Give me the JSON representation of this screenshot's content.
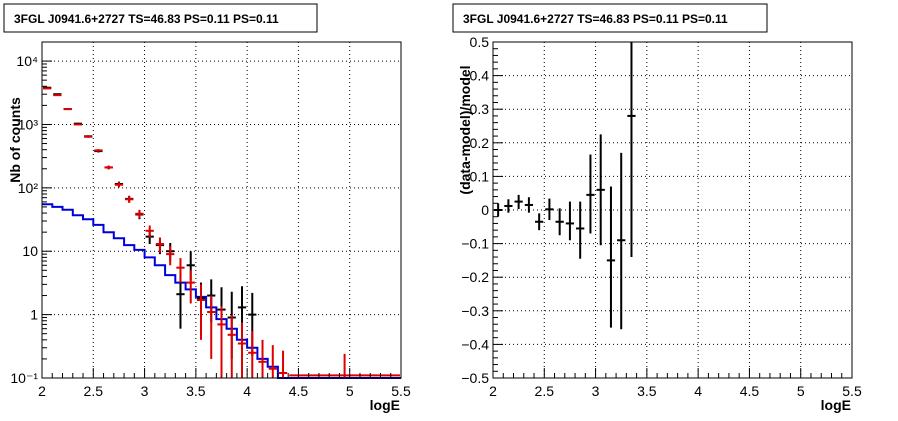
{
  "chart_data": [
    {
      "type": "scatter",
      "title": "3FGL J0941.6+2727 TS=46.83 PS=0.11 PS=0.11",
      "xlabel": "logE",
      "ylabel": "Nb of counts",
      "xlim": [
        2,
        5.5
      ],
      "ylim": [
        0.1,
        20000
      ],
      "yscale": "log",
      "grid": true,
      "x_ticks": [
        "2",
        "2.5",
        "3",
        "3.5",
        "4",
        "4.5",
        "5",
        "5.5"
      ],
      "y_tick_labels": [
        {
          "v": 0.1,
          "label": "10⁻¹"
        },
        {
          "v": 1,
          "label": "1"
        },
        {
          "v": 10,
          "label": "10"
        },
        {
          "v": 100,
          "label": "10²"
        },
        {
          "v": 1000,
          "label": "10³"
        },
        {
          "v": 10000,
          "label": "10⁴"
        }
      ],
      "bins": [
        2.0,
        2.1,
        2.2,
        2.3,
        2.4,
        2.5,
        2.6,
        2.7,
        2.8,
        2.9,
        3.0,
        3.1,
        3.2,
        3.3,
        3.4,
        3.5,
        3.6,
        3.7,
        3.8,
        3.9,
        4.0,
        4.1,
        4.2,
        4.3,
        4.4,
        5.5
      ],
      "series": [
        {
          "role": "data",
          "color": "#000000",
          "y": [
            3800,
            3000,
            1750,
            1030,
            650,
            380,
            210,
            115,
            67,
            38,
            17,
            12.5,
            10,
            2.1,
            6,
            1.8,
            2.0,
            1.2,
            0.9,
            1.3,
            1.0
          ],
          "lo": [
            3740,
            2945,
            1708,
            998,
            625,
            361,
            196,
            104.5,
            59,
            32,
            13,
            9,
            7,
            0.6,
            3.5,
            0.55,
            0.75,
            0.25,
            0.2,
            0.45,
            0.22
          ],
          "hi": [
            3860,
            3055,
            1792,
            1062,
            675,
            399,
            224,
            125.5,
            75,
            44,
            21.5,
            16,
            13.5,
            4.5,
            10,
            3.2,
            3.6,
            2.7,
            2.3,
            2.8,
            2.2
          ]
        },
        {
          "role": "model-total",
          "color": "#dd0000",
          "y": [
            3700,
            2900,
            1750,
            1000,
            640,
            390,
            210,
            112,
            66,
            39,
            21,
            13,
            9,
            5.5,
            3.2,
            1.7,
            1.1,
            0.7,
            0.48,
            0.35,
            0.25,
            0.18,
            0.14,
            0.12,
            0.11
          ],
          "lo": [
            3640,
            2845,
            1708,
            968,
            615,
            371,
            196,
            101.5,
            58,
            33,
            16.5,
            9.5,
            6,
            3.2,
            1.5,
            0.4,
            0.2,
            0.1,
            0.1,
            0.1,
            0.1,
            0.1,
            0.1,
            0.1,
            0.1
          ],
          "hi": [
            3760,
            2955,
            1792,
            1032,
            665,
            409,
            224,
            122.5,
            74,
            45,
            25.5,
            16.5,
            12,
            7.8,
            5.0,
            3.0,
            2.0,
            1.35,
            0.98,
            0.75,
            0.55,
            0.4,
            0.33,
            0.27,
            0.24
          ]
        },
        {
          "role": "model-component",
          "color": "#0000dd",
          "y": [
            55,
            50,
            45,
            37,
            32,
            26,
            20,
            16,
            12.5,
            10.5,
            8,
            6,
            4.2,
            3.2,
            2.5,
            1.9,
            1.3,
            0.85,
            0.6,
            0.4,
            0.3,
            0.2,
            0.15,
            0.1,
            0.1
          ]
        }
      ]
    },
    {
      "type": "scatter",
      "title": "3FGL J0941.6+2727 TS=46.83 PS=0.11 PS=0.11",
      "xlabel": "logE",
      "ylabel": "(data-model)/model",
      "xlim": [
        2,
        5.5
      ],
      "ylim": [
        -0.5,
        0.5
      ],
      "grid": true,
      "x_ticks": [
        "2",
        "2.5",
        "3",
        "3.5",
        "4",
        "4.5",
        "5",
        "5.5"
      ],
      "y_ticks": [
        "−0.5",
        "−0.4",
        "−0.3",
        "−0.2",
        "−0.1",
        "0",
        "0.1",
        "0.2",
        "0.3",
        "0.4",
        "0.5"
      ],
      "points": [
        {
          "x": 2.05,
          "y": 0.0,
          "lo": -0.02,
          "hi": 0.02
        },
        {
          "x": 2.15,
          "y": 0.012,
          "lo": -0.008,
          "hi": 0.032
        },
        {
          "x": 2.25,
          "y": 0.025,
          "lo": 0.003,
          "hi": 0.045
        },
        {
          "x": 2.35,
          "y": 0.015,
          "lo": -0.008,
          "hi": 0.038
        },
        {
          "x": 2.45,
          "y": -0.035,
          "lo": -0.06,
          "hi": -0.01
        },
        {
          "x": 2.55,
          "y": 0.002,
          "lo": -0.03,
          "hi": 0.034
        },
        {
          "x": 2.65,
          "y": -0.035,
          "lo": -0.075,
          "hi": 0.005
        },
        {
          "x": 2.75,
          "y": -0.04,
          "lo": -0.09,
          "hi": 0.025
        },
        {
          "x": 2.85,
          "y": -0.055,
          "lo": -0.145,
          "hi": 0.025
        },
        {
          "x": 2.95,
          "y": 0.045,
          "lo": -0.07,
          "hi": 0.165
        },
        {
          "x": 3.05,
          "y": 0.06,
          "lo": -0.105,
          "hi": 0.225
        },
        {
          "x": 3.15,
          "y": -0.15,
          "lo": -0.35,
          "hi": 0.07
        },
        {
          "x": 3.25,
          "y": -0.09,
          "lo": -0.355,
          "hi": 0.17
        },
        {
          "x": 3.35,
          "y": 0.28,
          "lo": -0.14,
          "hi": 0.5
        }
      ]
    }
  ]
}
